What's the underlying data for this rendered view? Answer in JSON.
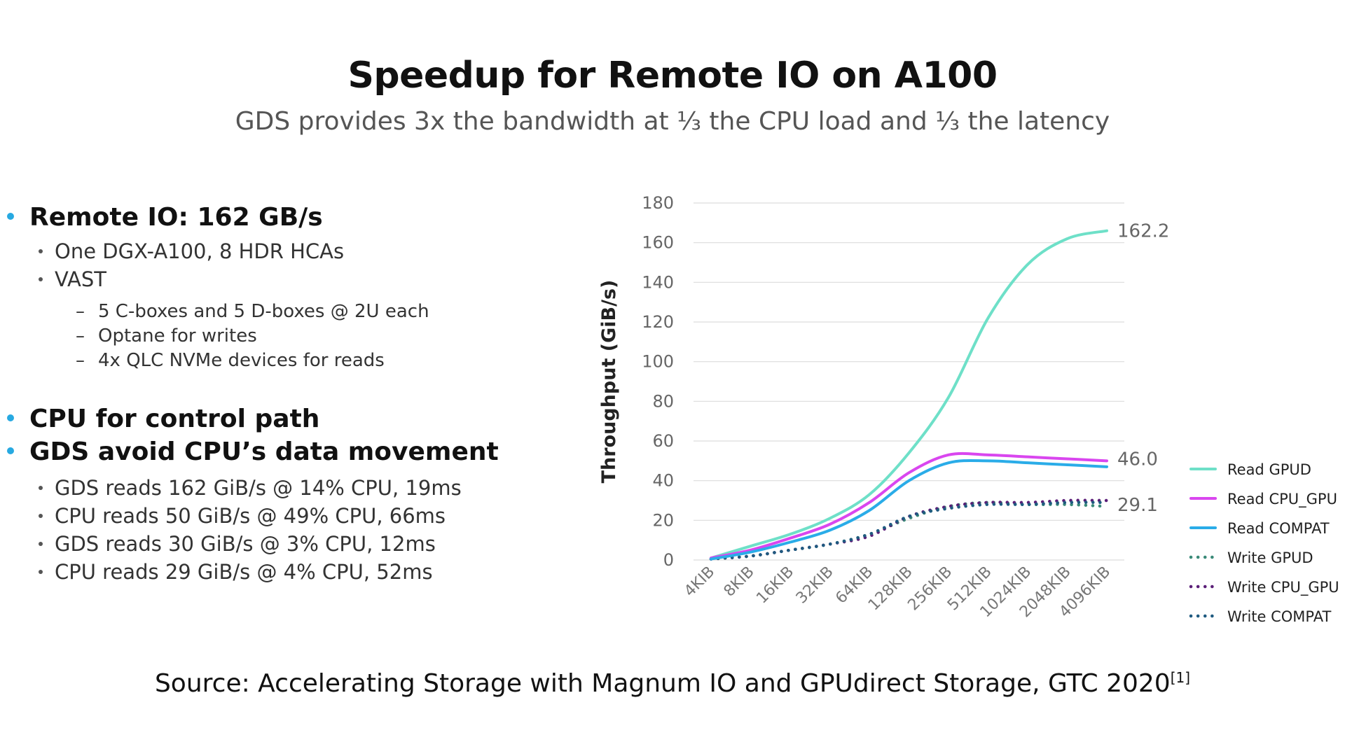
{
  "slide": {
    "title": "Speedup for Remote IO on A100",
    "subtitle": "GDS provides 3x the bandwidth at ⅓ the CPU load and ⅓ the latency",
    "source_text": "Source: Accelerating Storage with Magnum IO and GPUdirect Storage, GTC 2020",
    "source_ref": "[1]"
  },
  "bullets": {
    "remote_io": "Remote IO: 162 GB/s",
    "remote_io_sub": [
      "One DGX-A100, 8 HDR HCAs",
      "VAST"
    ],
    "vast_sub": [
      "5 C-boxes and 5 D-boxes @ 2U each",
      "Optane for writes",
      "4x QLC NVMe devices for reads"
    ],
    "cpu_control": "CPU for control path",
    "gds_avoid": "GDS avoid CPU’s data movement",
    "gds_sub": [
      "GDS reads 162 GiB/s @ 14% CPU, 19ms",
      "CPU reads 50 GiB/s @ 49% CPU, 66ms",
      "GDS reads 30 GiB/s @ 3% CPU, 12ms",
      "CPU reads 29 GiB/s @ 4% CPU, 52ms"
    ],
    "accent_color": "#27a9e1"
  },
  "chart_data": {
    "type": "line",
    "title": "",
    "xlabel": "",
    "ylabel": "Throughput (GiB/s)",
    "ylim": [
      0,
      180
    ],
    "yticks": [
      0,
      20,
      40,
      60,
      80,
      100,
      120,
      140,
      160,
      180
    ],
    "grid": true,
    "legend": "right",
    "categories": [
      "4KIB",
      "8KIB",
      "16KIB",
      "32KIB",
      "64KIB",
      "128KIB",
      "256KIB",
      "512KIB",
      "1024KIB",
      "2048KIB",
      "4096KIB"
    ],
    "series": [
      {
        "name": "Read GPUD",
        "style": "solid",
        "color": "#6ee0c8",
        "values": [
          1,
          7,
          13,
          21,
          33,
          54,
          82,
          122,
          149,
          162,
          166
        ]
      },
      {
        "name": "Read CPU_GPU",
        "style": "solid",
        "color": "#d946ef",
        "values": [
          1,
          5,
          11,
          18,
          29,
          44,
          53,
          53,
          52,
          51,
          50
        ]
      },
      {
        "name": "Read COMPAT",
        "style": "solid",
        "color": "#2aace8",
        "values": [
          0.5,
          4,
          9,
          15,
          25,
          40,
          49,
          50,
          49,
          48,
          47
        ]
      },
      {
        "name": "Write GPUD",
        "style": "dotted",
        "color": "#3a8a78",
        "values": [
          0.5,
          2,
          5,
          8,
          13,
          21,
          27,
          29,
          28,
          28,
          27
        ]
      },
      {
        "name": "Write CPU_GPU",
        "style": "dotted",
        "color": "#5b1f78",
        "values": [
          0.5,
          2,
          5,
          8,
          12,
          22,
          27,
          29,
          29,
          30,
          30
        ]
      },
      {
        "name": "Write COMPAT",
        "style": "dotted",
        "color": "#1f5a80",
        "values": [
          0.5,
          2,
          5,
          8,
          13,
          22,
          26,
          28,
          28,
          29,
          29
        ]
      }
    ],
    "annotations": [
      "162.2",
      "46.0",
      "29.1"
    ]
  }
}
